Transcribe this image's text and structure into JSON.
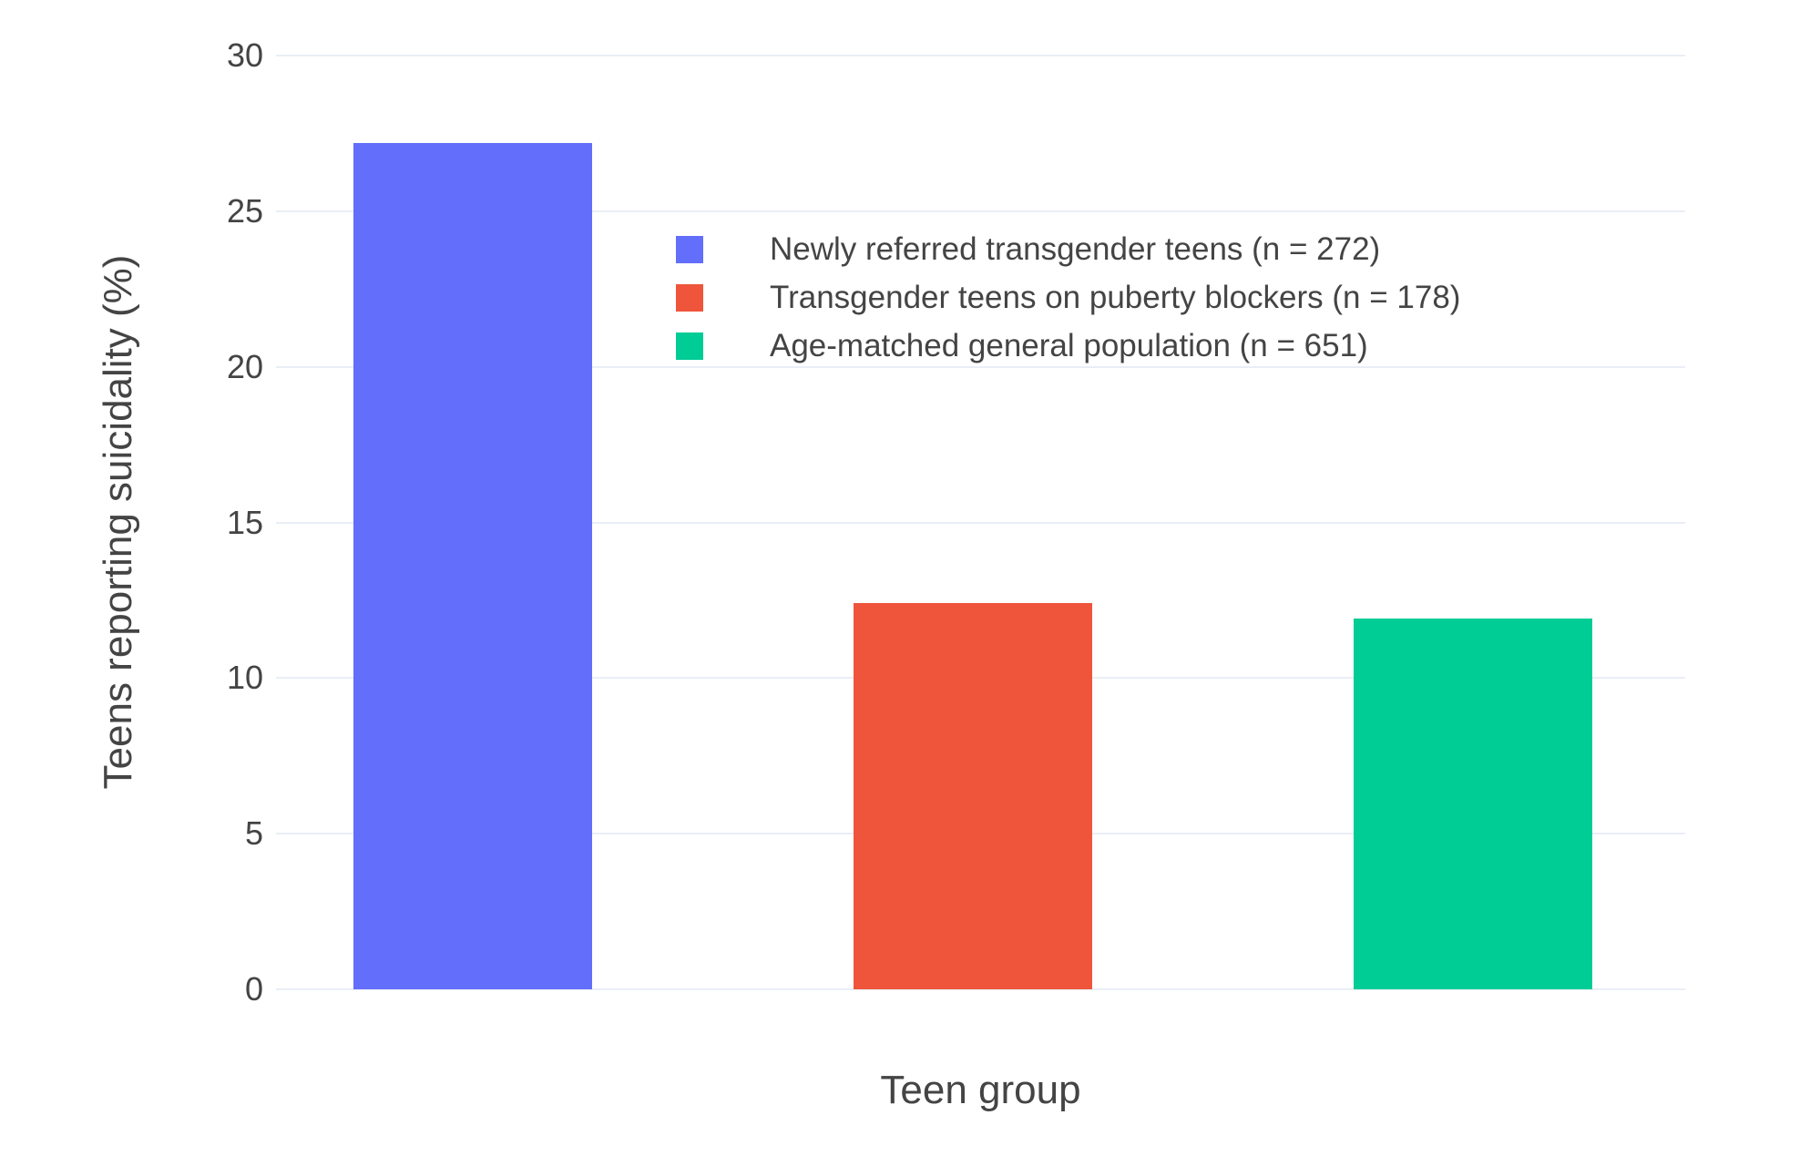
{
  "chart_data": {
    "type": "bar",
    "title": "",
    "xlabel": "Teen group",
    "ylabel": "Teens reporting suicidality (%)",
    "categories": [
      "Newly referred transgender teens (n = 272)",
      "Transgender teens on puberty blockers (n = 178)",
      "Age-matched general population (n = 651)"
    ],
    "values": [
      27.2,
      12.4,
      11.9
    ],
    "colors": [
      "#636EFA",
      "#EF553B",
      "#00CC96"
    ],
    "ylim": [
      0,
      30
    ],
    "yticks": [
      0,
      5,
      10,
      15,
      20,
      25,
      30
    ],
    "grid": true,
    "legend_position": "inside-top-center"
  },
  "styles": {
    "background": "#FFFFFF",
    "grid_color": "#E9EEF6",
    "text_color": "#444444"
  }
}
